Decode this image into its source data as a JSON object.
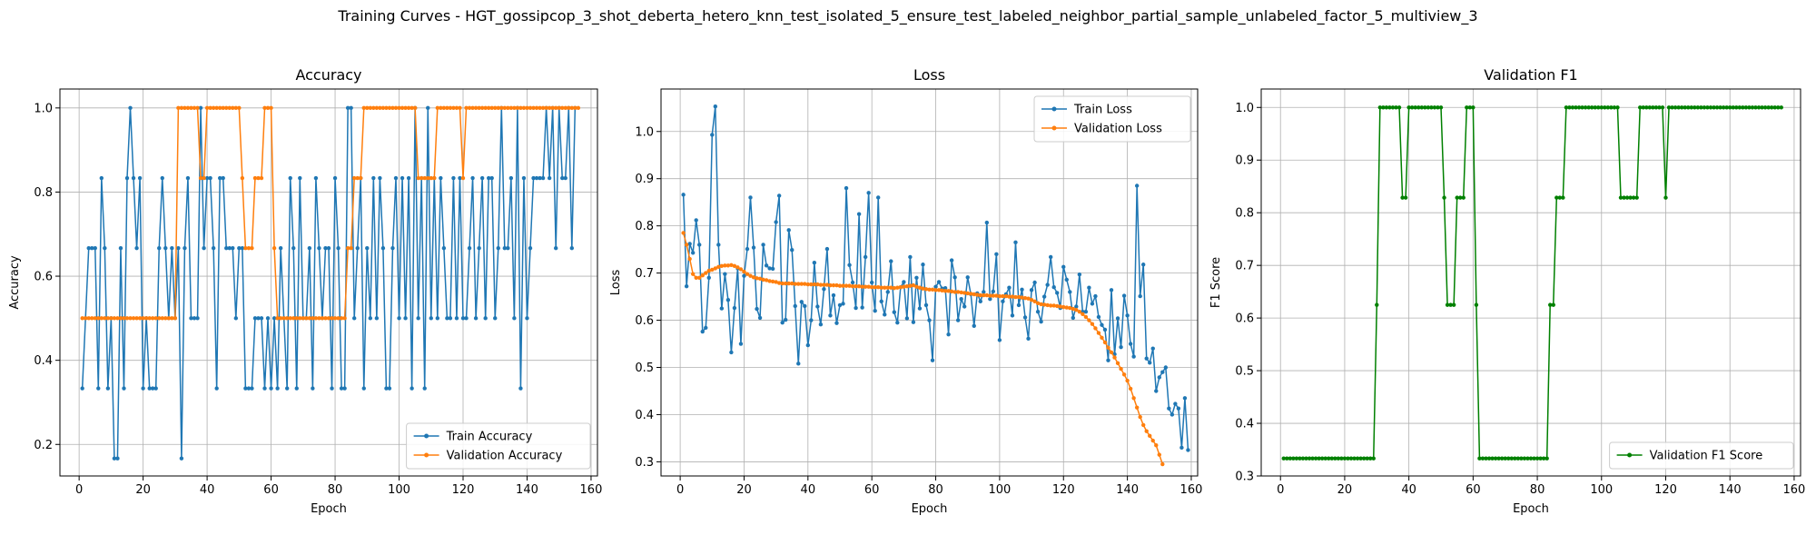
{
  "suptitle": "Training Curves - HGT_gossipcop_3_shot_deberta_hetero_knn_test_isolated_5_ensure_test_labeled_neighbor_partial_sample_unlabeled_factor_5_multiview_3",
  "chart_data": [
    {
      "type": "line",
      "title": "Accuracy",
      "xlabel": "Epoch",
      "ylabel": "Accuracy",
      "xlim": [
        -6,
        162
      ],
      "ylim": [
        0.125,
        1.045
      ],
      "xticks": [
        0,
        20,
        40,
        60,
        80,
        100,
        120,
        140,
        160
      ],
      "yticks": [
        0.2,
        0.4,
        0.6,
        0.8,
        1.0
      ],
      "grid": true,
      "legend": "lower-right",
      "series": [
        {
          "name": "Train Accuracy",
          "color": "#1f77b4",
          "values": [
            0.3333,
            0.5,
            0.6667,
            0.6667,
            0.6667,
            0.3333,
            0.8333,
            0.6667,
            0.3333,
            0.5,
            0.1667,
            0.1667,
            0.6667,
            0.3333,
            0.8333,
            1.0,
            0.8333,
            0.6667,
            0.8333,
            0.3333,
            0.5,
            0.3333,
            0.3333,
            0.3333,
            0.6667,
            0.8333,
            0.6667,
            0.5,
            0.6667,
            0.5,
            0.6667,
            0.1667,
            0.6667,
            0.8333,
            0.5,
            0.5,
            0.5,
            1.0,
            0.6667,
            0.8333,
            0.8333,
            0.6667,
            0.3333,
            0.8333,
            0.8333,
            0.6667,
            0.6667,
            0.6667,
            0.5,
            0.6667,
            0.6667,
            0.3333,
            0.3333,
            0.3333,
            0.5,
            0.5,
            0.5,
            0.3333,
            0.5,
            0.3333,
            0.5,
            0.3333,
            0.6667,
            0.5,
            0.3333,
            0.8333,
            0.6667,
            0.3333,
            0.8333,
            0.5,
            0.5,
            0.6667,
            0.3333,
            0.8333,
            0.6667,
            0.5,
            0.6667,
            0.6667,
            0.3333,
            0.8333,
            0.6667,
            0.3333,
            0.3333,
            1.0,
            1.0,
            0.5,
            0.6667,
            0.8333,
            0.3333,
            0.6667,
            0.5,
            0.8333,
            0.5,
            0.8333,
            0.6667,
            0.3333,
            0.3333,
            0.6667,
            0.8333,
            0.5,
            0.8333,
            0.5,
            0.8333,
            0.3333,
            1.0,
            0.5,
            0.8333,
            0.3333,
            1.0,
            0.5,
            0.8333,
            0.5,
            0.8333,
            0.6667,
            0.5,
            0.5,
            0.8333,
            0.5,
            0.8333,
            0.5,
            0.5,
            0.6667,
            0.8333,
            0.5,
            0.6667,
            0.8333,
            0.5,
            0.8333,
            0.8333,
            0.5,
            0.6667,
            1.0,
            0.6667,
            0.6667,
            0.8333,
            0.5,
            1.0,
            0.3333,
            0.8333,
            0.5,
            0.6667,
            0.8333,
            0.8333,
            0.8333,
            0.8333,
            1.0,
            0.8333,
            1.0,
            0.6667,
            1.0,
            0.8333,
            0.8333,
            1.0,
            0.6667,
            1.0
          ]
        },
        {
          "name": "Validation Accuracy",
          "color": "#ff7f0e",
          "values": [
            0.5,
            0.5,
            0.5,
            0.5,
            0.5,
            0.5,
            0.5,
            0.5,
            0.5,
            0.5,
            0.5,
            0.5,
            0.5,
            0.5,
            0.5,
            0.5,
            0.5,
            0.5,
            0.5,
            0.5,
            0.5,
            0.5,
            0.5,
            0.5,
            0.5,
            0.5,
            0.5,
            0.5,
            0.5,
            0.5,
            1.0,
            1.0,
            1.0,
            1.0,
            1.0,
            1.0,
            1.0,
            0.8333,
            0.8333,
            1.0,
            1.0,
            1.0,
            1.0,
            1.0,
            1.0,
            1.0,
            1.0,
            1.0,
            1.0,
            1.0,
            0.8333,
            0.6667,
            0.6667,
            0.6667,
            0.8333,
            0.8333,
            0.8333,
            1.0,
            1.0,
            1.0,
            0.6667,
            0.5,
            0.5,
            0.5,
            0.5,
            0.5,
            0.5,
            0.5,
            0.5,
            0.5,
            0.5,
            0.5,
            0.5,
            0.5,
            0.5,
            0.5,
            0.5,
            0.5,
            0.5,
            0.5,
            0.5,
            0.5,
            0.5,
            0.6667,
            0.6667,
            0.8333,
            0.8333,
            0.8333,
            1.0,
            1.0,
            1.0,
            1.0,
            1.0,
            1.0,
            1.0,
            1.0,
            1.0,
            1.0,
            1.0,
            1.0,
            1.0,
            1.0,
            1.0,
            1.0,
            1.0,
            0.8333,
            0.8333,
            0.8333,
            0.8333,
            0.8333,
            0.8333,
            1.0,
            1.0,
            1.0,
            1.0,
            1.0,
            1.0,
            1.0,
            1.0,
            0.8333,
            1.0,
            1.0,
            1.0,
            1.0,
            1.0,
            1.0,
            1.0,
            1.0,
            1.0,
            1.0,
            1.0,
            1.0,
            1.0,
            1.0,
            1.0,
            1.0,
            1.0,
            1.0,
            1.0,
            1.0,
            1.0,
            1.0,
            1.0,
            1.0,
            1.0,
            1.0,
            1.0,
            1.0,
            1.0,
            1.0,
            1.0,
            1.0,
            1.0,
            1.0,
            1.0,
            1.0
          ]
        }
      ]
    },
    {
      "type": "line",
      "title": "Loss",
      "xlabel": "Epoch",
      "ylabel": "Loss",
      "xlim": [
        -6,
        162
      ],
      "ylim": [
        0.27,
        1.09
      ],
      "xticks": [
        0,
        20,
        40,
        60,
        80,
        100,
        120,
        140,
        160
      ],
      "yticks": [
        0.3,
        0.4,
        0.5,
        0.6,
        0.7,
        0.8,
        0.9,
        1.0
      ],
      "grid": true,
      "legend": "upper-right",
      "series": [
        {
          "name": "Train Loss",
          "color": "#1f77b4",
          "values": [
            0.866,
            0.672,
            0.762,
            0.743,
            0.812,
            0.76,
            0.576,
            0.584,
            0.69,
            0.993,
            1.053,
            0.76,
            0.625,
            0.698,
            0.643,
            0.532,
            0.626,
            0.71,
            0.55,
            0.694,
            0.751,
            0.86,
            0.754,
            0.624,
            0.605,
            0.76,
            0.716,
            0.71,
            0.709,
            0.808,
            0.864,
            0.595,
            0.601,
            0.791,
            0.749,
            0.63,
            0.508,
            0.639,
            0.63,
            0.547,
            0.6,
            0.722,
            0.629,
            0.591,
            0.666,
            0.751,
            0.61,
            0.653,
            0.594,
            0.632,
            0.635,
            0.88,
            0.717,
            0.68,
            0.626,
            0.825,
            0.627,
            0.734,
            0.87,
            0.68,
            0.62,
            0.86,
            0.64,
            0.612,
            0.66,
            0.725,
            0.617,
            0.595,
            0.67,
            0.681,
            0.604,
            0.734,
            0.596,
            0.69,
            0.625,
            0.718,
            0.632,
            0.6,
            0.515,
            0.671,
            0.681,
            0.667,
            0.668,
            0.57,
            0.727,
            0.691,
            0.6,
            0.645,
            0.629,
            0.691,
            0.655,
            0.588,
            0.657,
            0.64,
            0.66,
            0.807,
            0.645,
            0.661,
            0.74,
            0.558,
            0.64,
            0.655,
            0.669,
            0.61,
            0.765,
            0.632,
            0.665,
            0.606,
            0.561,
            0.664,
            0.68,
            0.618,
            0.597,
            0.65,
            0.675,
            0.734,
            0.67,
            0.658,
            0.626,
            0.713,
            0.686,
            0.66,
            0.605,
            0.629,
            0.697,
            0.618,
            0.618,
            0.669,
            0.635,
            0.651,
            0.607,
            0.59,
            0.58,
            0.515,
            0.664,
            0.528,
            0.604,
            0.543,
            0.652,
            0.61,
            0.55,
            0.523,
            0.885,
            0.651,
            0.718,
            0.519,
            0.51,
            0.54,
            0.45,
            0.479,
            0.49,
            0.5,
            0.413,
            0.4,
            0.423,
            0.413,
            0.33,
            0.435,
            0.3249
          ]
        },
        {
          "name": "Validation Loss",
          "color": "#ff7f0e",
          "values": [
            0.785,
            0.76,
            0.73,
            0.698,
            0.69,
            0.69,
            0.695,
            0.7,
            0.705,
            0.707,
            0.71,
            0.713,
            0.715,
            0.716,
            0.716,
            0.717,
            0.715,
            0.712,
            0.708,
            0.703,
            0.698,
            0.694,
            0.691,
            0.689,
            0.688,
            0.686,
            0.685,
            0.683,
            0.682,
            0.681,
            0.679,
            0.678,
            0.678,
            0.678,
            0.678,
            0.677,
            0.677,
            0.677,
            0.677,
            0.676,
            0.676,
            0.676,
            0.676,
            0.675,
            0.675,
            0.675,
            0.674,
            0.674,
            0.674,
            0.673,
            0.673,
            0.673,
            0.673,
            0.672,
            0.672,
            0.672,
            0.671,
            0.671,
            0.671,
            0.67,
            0.67,
            0.67,
            0.669,
            0.669,
            0.669,
            0.669,
            0.668,
            0.669,
            0.67,
            0.671,
            0.672,
            0.673,
            0.674,
            0.671,
            0.669,
            0.667,
            0.666,
            0.665,
            0.665,
            0.664,
            0.664,
            0.663,
            0.662,
            0.662,
            0.661,
            0.66,
            0.66,
            0.659,
            0.658,
            0.657,
            0.656,
            0.655,
            0.654,
            0.653,
            0.653,
            0.653,
            0.652,
            0.652,
            0.652,
            0.651,
            0.651,
            0.651,
            0.65,
            0.65,
            0.649,
            0.649,
            0.648,
            0.647,
            0.646,
            0.643,
            0.64,
            0.636,
            0.634,
            0.633,
            0.632,
            0.631,
            0.631,
            0.63,
            0.629,
            0.628,
            0.627,
            0.626,
            0.624,
            0.622,
            0.618,
            0.613,
            0.607,
            0.6,
            0.592,
            0.583,
            0.573,
            0.563,
            0.553,
            0.542,
            0.532,
            0.521,
            0.509,
            0.497,
            0.485,
            0.472,
            0.455,
            0.435,
            0.415,
            0.395,
            0.378,
            0.365,
            0.355,
            0.345,
            0.335,
            0.315,
            0.295
          ]
        }
      ]
    },
    {
      "type": "line",
      "title": "Validation F1",
      "xlabel": "Epoch",
      "ylabel": "F1 Score",
      "xlim": [
        -6,
        162
      ],
      "ylim": [
        0.3,
        1.035
      ],
      "xticks": [
        0,
        20,
        40,
        60,
        80,
        100,
        120,
        140,
        160
      ],
      "yticks": [
        0.3,
        0.4,
        0.5,
        0.6,
        0.7,
        0.8,
        0.9,
        1.0
      ],
      "grid": true,
      "legend": "lower-right",
      "series": [
        {
          "name": "Validation F1 Score",
          "color": "#008000",
          "values": [
            0.3333,
            0.3333,
            0.3333,
            0.3333,
            0.3333,
            0.3333,
            0.3333,
            0.3333,
            0.3333,
            0.3333,
            0.3333,
            0.3333,
            0.3333,
            0.3333,
            0.3333,
            0.3333,
            0.3333,
            0.3333,
            0.3333,
            0.3333,
            0.3333,
            0.3333,
            0.3333,
            0.3333,
            0.3333,
            0.3333,
            0.3333,
            0.3333,
            0.3333,
            0.625,
            1.0,
            1.0,
            1.0,
            1.0,
            1.0,
            1.0,
            1.0,
            0.8286,
            0.8286,
            1.0,
            1.0,
            1.0,
            1.0,
            1.0,
            1.0,
            1.0,
            1.0,
            1.0,
            1.0,
            1.0,
            0.8286,
            0.625,
            0.625,
            0.625,
            0.8286,
            0.8286,
            0.8286,
            1.0,
            1.0,
            1.0,
            0.625,
            0.3333,
            0.3333,
            0.3333,
            0.3333,
            0.3333,
            0.3333,
            0.3333,
            0.3333,
            0.3333,
            0.3333,
            0.3333,
            0.3333,
            0.3333,
            0.3333,
            0.3333,
            0.3333,
            0.3333,
            0.3333,
            0.3333,
            0.3333,
            0.3333,
            0.3333,
            0.625,
            0.625,
            0.8286,
            0.8286,
            0.8286,
            1.0,
            1.0,
            1.0,
            1.0,
            1.0,
            1.0,
            1.0,
            1.0,
            1.0,
            1.0,
            1.0,
            1.0,
            1.0,
            1.0,
            1.0,
            1.0,
            1.0,
            0.8286,
            0.8286,
            0.8286,
            0.8286,
            0.8286,
            0.8286,
            1.0,
            1.0,
            1.0,
            1.0,
            1.0,
            1.0,
            1.0,
            1.0,
            0.8286,
            1.0,
            1.0,
            1.0,
            1.0,
            1.0,
            1.0,
            1.0,
            1.0,
            1.0,
            1.0,
            1.0,
            1.0,
            1.0,
            1.0,
            1.0,
            1.0,
            1.0,
            1.0,
            1.0,
            1.0,
            1.0,
            1.0,
            1.0,
            1.0,
            1.0,
            1.0,
            1.0,
            1.0,
            1.0,
            1.0,
            1.0,
            1.0,
            1.0,
            1.0,
            1.0,
            1.0
          ]
        }
      ]
    }
  ]
}
